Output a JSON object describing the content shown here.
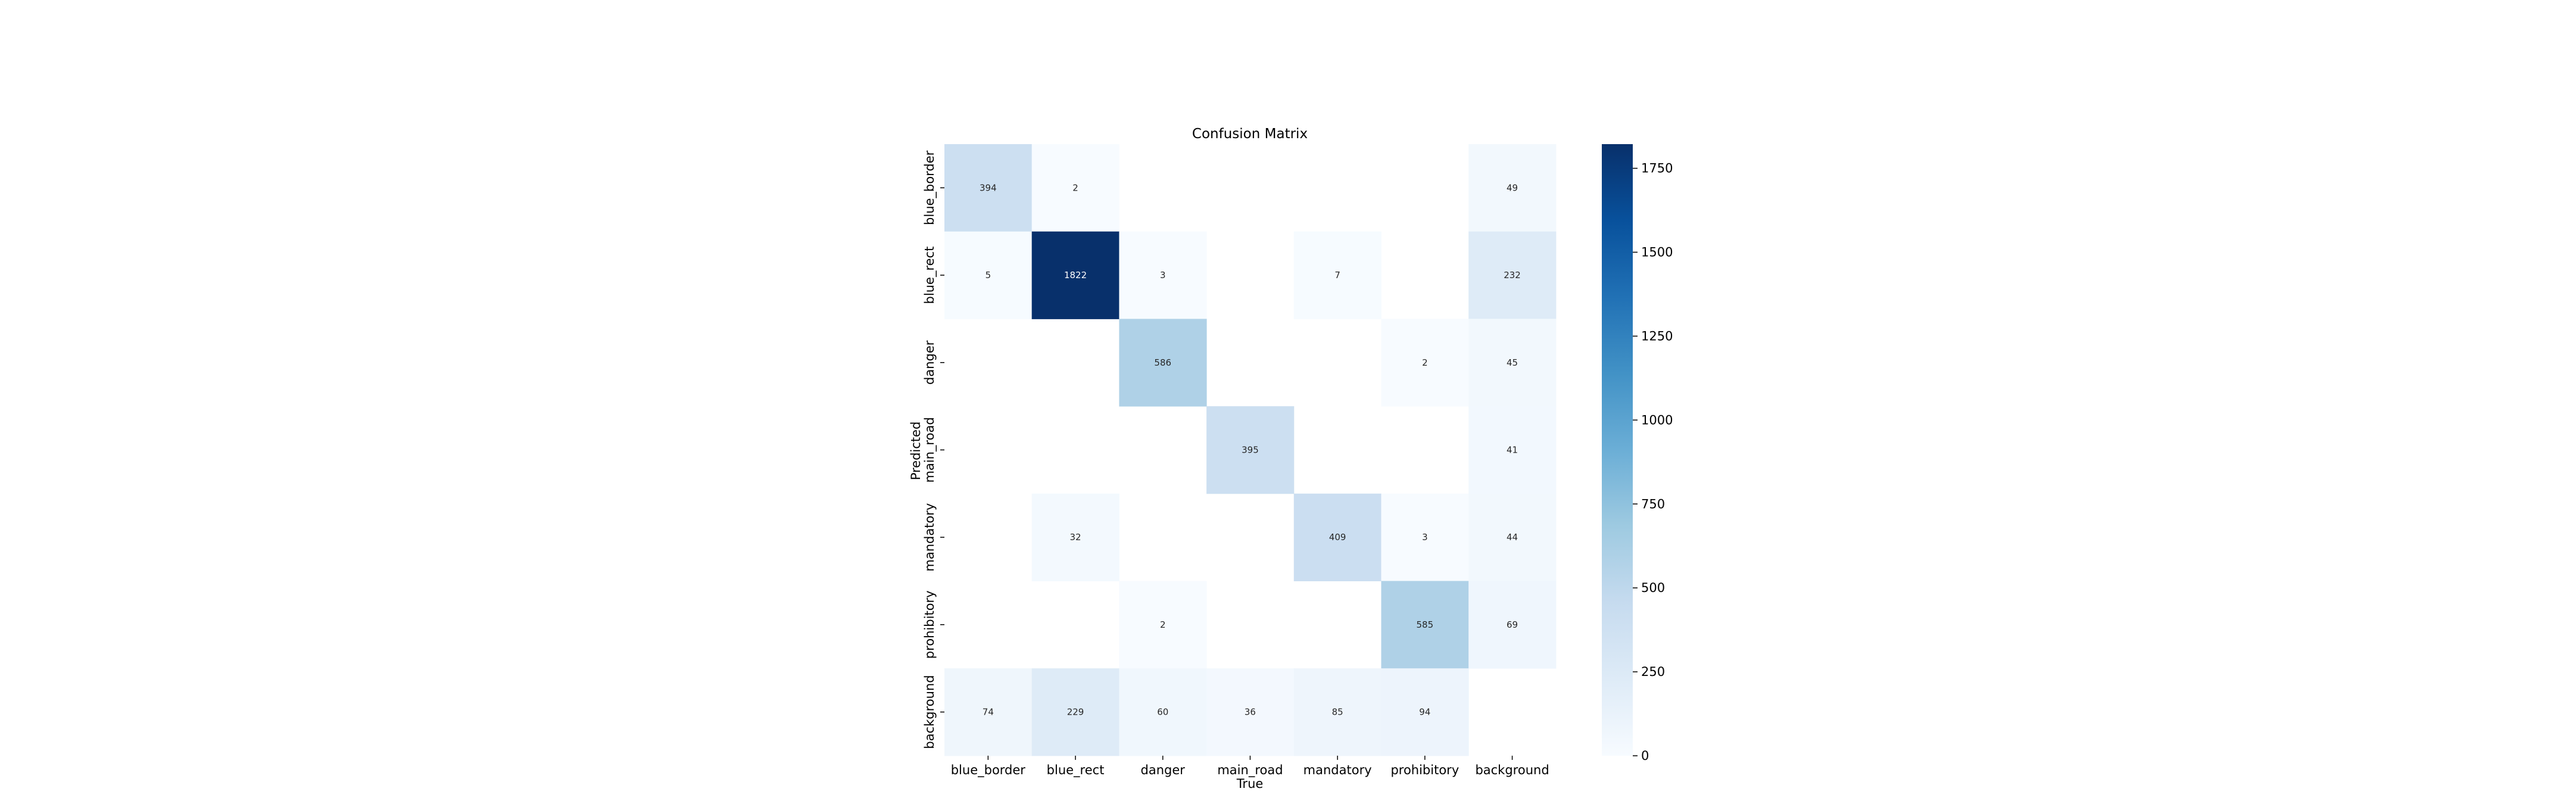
{
  "chart_data": {
    "type": "heatmap",
    "title": "Confusion Matrix",
    "xlabel": "True",
    "ylabel": "Predicted",
    "x_categories": [
      "blue_border",
      "blue_rect",
      "danger",
      "main_road",
      "mandatory",
      "prohibitory",
      "background"
    ],
    "y_categories": [
      "blue_border",
      "blue_rect",
      "danger",
      "main_road",
      "mandatory",
      "prohibitory",
      "background"
    ],
    "matrix": [
      [
        394,
        2,
        null,
        null,
        null,
        null,
        49
      ],
      [
        5,
        1822,
        3,
        null,
        7,
        null,
        232
      ],
      [
        null,
        null,
        586,
        null,
        null,
        2,
        45
      ],
      [
        null,
        null,
        null,
        395,
        null,
        null,
        41
      ],
      [
        null,
        32,
        null,
        null,
        409,
        3,
        44
      ],
      [
        null,
        null,
        2,
        null,
        null,
        585,
        69
      ],
      [
        74,
        229,
        60,
        36,
        85,
        94,
        null
      ]
    ],
    "colorbar": {
      "min": 0,
      "max": 1822,
      "ticks": [
        0,
        250,
        500,
        750,
        1000,
        1250,
        1500,
        1750
      ],
      "colormap": "Blues"
    },
    "grid": false
  }
}
